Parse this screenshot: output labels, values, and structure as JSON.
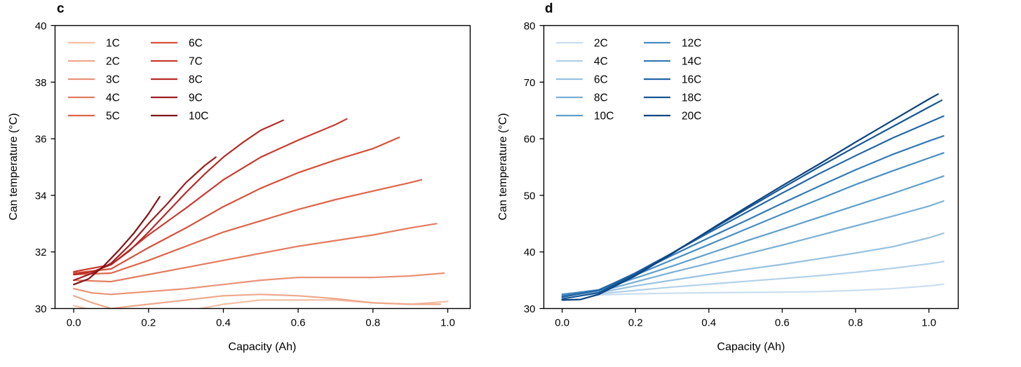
{
  "chart_data": [
    {
      "type": "line",
      "panel_label": "c",
      "xlabel": "Capacity (Ah)",
      "ylabel": "Can temperature (°C)",
      "xlim": [
        -0.05,
        1.06
      ],
      "ylim": [
        30,
        40
      ],
      "xticks": [
        0.0,
        0.2,
        0.4,
        0.6,
        0.8,
        1.0
      ],
      "xtick_labels": [
        "0.0",
        "0.2",
        "0.4",
        "0.6",
        "0.8",
        "1.0"
      ],
      "yticks": [
        30,
        32,
        34,
        36,
        38,
        40
      ],
      "ytick_labels": [
        "30",
        "32",
        "34",
        "36",
        "38",
        "40"
      ],
      "grid": false,
      "legend_position": "top-left",
      "legend_columns": 2,
      "series": [
        {
          "name": "1C",
          "color": "#f3c0a6",
          "x": [
            0.0,
            0.1,
            0.2,
            0.3,
            0.4,
            0.5,
            0.6,
            0.7,
            0.8,
            0.9,
            1.0
          ],
          "y": [
            30.1,
            29.8,
            29.8,
            29.9,
            30.15,
            30.3,
            30.3,
            30.3,
            30.2,
            30.15,
            30.25
          ]
        },
        {
          "name": "2C",
          "color": "#eea88b",
          "x": [
            0.0,
            0.05,
            0.1,
            0.2,
            0.3,
            0.4,
            0.5,
            0.6,
            0.7,
            0.8,
            0.9,
            0.98
          ],
          "y": [
            30.45,
            30.2,
            30.0,
            30.15,
            30.3,
            30.45,
            30.5,
            30.45,
            30.35,
            30.2,
            30.15,
            30.15
          ]
        },
        {
          "name": "3C",
          "color": "#e99276",
          "x": [
            0.0,
            0.05,
            0.1,
            0.2,
            0.3,
            0.4,
            0.5,
            0.6,
            0.7,
            0.8,
            0.9,
            0.99
          ],
          "y": [
            30.7,
            30.55,
            30.5,
            30.6,
            30.7,
            30.85,
            31.0,
            31.1,
            31.1,
            31.1,
            31.15,
            31.25
          ]
        },
        {
          "name": "4C",
          "color": "#e37b5f",
          "x": [
            0.0,
            0.1,
            0.2,
            0.3,
            0.4,
            0.5,
            0.6,
            0.7,
            0.8,
            0.9,
            0.97
          ],
          "y": [
            31.0,
            30.95,
            31.2,
            31.45,
            31.7,
            31.95,
            32.2,
            32.4,
            32.6,
            32.85,
            33.0
          ]
        },
        {
          "name": "5C",
          "color": "#dd6548",
          "x": [
            0.0,
            0.1,
            0.2,
            0.3,
            0.4,
            0.5,
            0.6,
            0.7,
            0.8,
            0.9,
            0.93
          ],
          "y": [
            31.2,
            31.25,
            31.7,
            32.2,
            32.7,
            33.1,
            33.5,
            33.85,
            34.15,
            34.45,
            34.55
          ]
        },
        {
          "name": "6C",
          "color": "#d5503a",
          "x": [
            0.0,
            0.1,
            0.2,
            0.3,
            0.4,
            0.5,
            0.6,
            0.7,
            0.8,
            0.87
          ],
          "y": [
            31.25,
            31.4,
            32.15,
            32.85,
            33.6,
            34.25,
            34.8,
            35.25,
            35.65,
            36.05
          ]
        },
        {
          "name": "7C",
          "color": "#c83a2f",
          "x": [
            0.0,
            0.1,
            0.2,
            0.3,
            0.4,
            0.5,
            0.6,
            0.7,
            0.73
          ],
          "y": [
            31.3,
            31.55,
            32.6,
            33.55,
            34.55,
            35.35,
            35.95,
            36.5,
            36.7
          ]
        },
        {
          "name": "8C",
          "color": "#b52a27",
          "x": [
            0.0,
            0.05,
            0.1,
            0.15,
            0.2,
            0.25,
            0.3,
            0.35,
            0.4,
            0.45,
            0.5,
            0.56
          ],
          "y": [
            31.2,
            31.3,
            31.55,
            32.05,
            32.7,
            33.4,
            34.1,
            34.75,
            35.35,
            35.85,
            36.3,
            36.65
          ]
        },
        {
          "name": "9C",
          "color": "#9e1d20",
          "x": [
            0.0,
            0.05,
            0.1,
            0.15,
            0.2,
            0.25,
            0.3,
            0.35,
            0.38
          ],
          "y": [
            31.0,
            31.25,
            31.6,
            32.25,
            33.0,
            33.7,
            34.45,
            35.05,
            35.35
          ]
        },
        {
          "name": "10C",
          "color": "#801216",
          "x": [
            0.0,
            0.04,
            0.08,
            0.12,
            0.16,
            0.2,
            0.23
          ],
          "y": [
            30.85,
            31.05,
            31.5,
            32.05,
            32.65,
            33.35,
            33.95
          ]
        }
      ]
    },
    {
      "type": "line",
      "panel_label": "d",
      "xlabel": "Capacity (Ah)",
      "ylabel": "Can temperature (°C)",
      "xlim": [
        -0.05,
        1.08
      ],
      "ylim": [
        30,
        80
      ],
      "xticks": [
        0.0,
        0.2,
        0.4,
        0.6,
        0.8,
        1.0
      ],
      "xtick_labels": [
        "0.0",
        "0.2",
        "0.4",
        "0.6",
        "0.8",
        "1.0"
      ],
      "yticks": [
        30,
        40,
        50,
        60,
        70,
        80
      ],
      "ytick_labels": [
        "30",
        "40",
        "50",
        "60",
        "70",
        "80"
      ],
      "grid": false,
      "legend_position": "top-left",
      "legend_columns": 2,
      "series": [
        {
          "name": "2C",
          "color": "#cbdeef",
          "x": [
            0.0,
            0.1,
            0.2,
            0.3,
            0.4,
            0.5,
            0.6,
            0.7,
            0.8,
            0.9,
            1.0,
            1.04
          ],
          "y": [
            32.5,
            32.4,
            32.6,
            32.7,
            32.8,
            32.85,
            32.9,
            33.0,
            33.2,
            33.5,
            34.0,
            34.3
          ]
        },
        {
          "name": "4C",
          "color": "#b2d1e7",
          "x": [
            0.0,
            0.1,
            0.2,
            0.3,
            0.4,
            0.5,
            0.6,
            0.7,
            0.8,
            0.9,
            1.0,
            1.04
          ],
          "y": [
            32.5,
            32.6,
            33.2,
            33.8,
            34.3,
            34.8,
            35.3,
            35.8,
            36.4,
            37.1,
            37.9,
            38.3
          ]
        },
        {
          "name": "6C",
          "color": "#96c1df",
          "x": [
            0.0,
            0.1,
            0.2,
            0.3,
            0.4,
            0.5,
            0.6,
            0.7,
            0.8,
            0.9,
            1.0,
            1.04
          ],
          "y": [
            32.5,
            32.8,
            34.0,
            35.0,
            36.0,
            36.9,
            37.8,
            38.8,
            39.8,
            40.9,
            42.5,
            43.3
          ]
        },
        {
          "name": "8C",
          "color": "#7ab0d6",
          "x": [
            0.0,
            0.1,
            0.2,
            0.3,
            0.4,
            0.5,
            0.6,
            0.7,
            0.8,
            0.9,
            1.0,
            1.04
          ],
          "y": [
            32.5,
            33.0,
            34.7,
            36.4,
            38.0,
            39.6,
            41.2,
            42.9,
            44.6,
            46.3,
            48.1,
            49.0
          ]
        },
        {
          "name": "10C",
          "color": "#5f9fcc",
          "x": [
            0.0,
            0.1,
            0.2,
            0.3,
            0.4,
            0.5,
            0.6,
            0.7,
            0.8,
            0.9,
            1.0,
            1.04
          ],
          "y": [
            32.5,
            33.2,
            35.4,
            37.5,
            39.7,
            41.9,
            44.0,
            46.1,
            48.2,
            50.3,
            52.5,
            53.4
          ]
        },
        {
          "name": "12C",
          "color": "#478dc1",
          "x": [
            0.0,
            0.1,
            0.2,
            0.3,
            0.4,
            0.5,
            0.6,
            0.7,
            0.8,
            0.9,
            1.0,
            1.04
          ],
          "y": [
            32.5,
            33.3,
            35.9,
            38.6,
            41.3,
            44.0,
            46.7,
            49.3,
            51.9,
            54.3,
            56.6,
            57.5
          ]
        },
        {
          "name": "14C",
          "color": "#337ab6",
          "x": [
            0.0,
            0.1,
            0.2,
            0.3,
            0.4,
            0.5,
            0.6,
            0.7,
            0.8,
            0.9,
            1.0,
            1.04
          ],
          "y": [
            32.2,
            33.3,
            36.2,
            39.4,
            42.5,
            45.5,
            48.6,
            51.6,
            54.5,
            57.2,
            59.6,
            60.5
          ]
        },
        {
          "name": "16C",
          "color": "#2366a6",
          "x": [
            0.0,
            0.1,
            0.2,
            0.3,
            0.4,
            0.5,
            0.6,
            0.7,
            0.8,
            0.9,
            1.0,
            1.04
          ],
          "y": [
            32.0,
            33.2,
            36.3,
            39.8,
            43.4,
            46.9,
            50.4,
            53.8,
            57.0,
            60.1,
            62.9,
            64.0
          ]
        },
        {
          "name": "18C",
          "color": "#175694",
          "x": [
            0.0,
            0.1,
            0.2,
            0.3,
            0.4,
            0.5,
            0.6,
            0.7,
            0.8,
            0.9,
            1.0,
            1.035
          ],
          "y": [
            31.7,
            32.8,
            36.1,
            39.8,
            43.7,
            47.5,
            51.3,
            55.0,
            58.6,
            62.1,
            65.6,
            66.8
          ]
        },
        {
          "name": "20C",
          "color": "#0c4380",
          "x": [
            0.0,
            0.05,
            0.1,
            0.2,
            0.3,
            0.4,
            0.5,
            0.6,
            0.7,
            0.8,
            0.9,
            1.0,
            1.025
          ],
          "y": [
            31.5,
            31.6,
            32.5,
            35.8,
            39.7,
            43.8,
            47.8,
            51.7,
            55.5,
            59.4,
            63.2,
            67.0,
            67.9
          ]
        }
      ]
    }
  ]
}
